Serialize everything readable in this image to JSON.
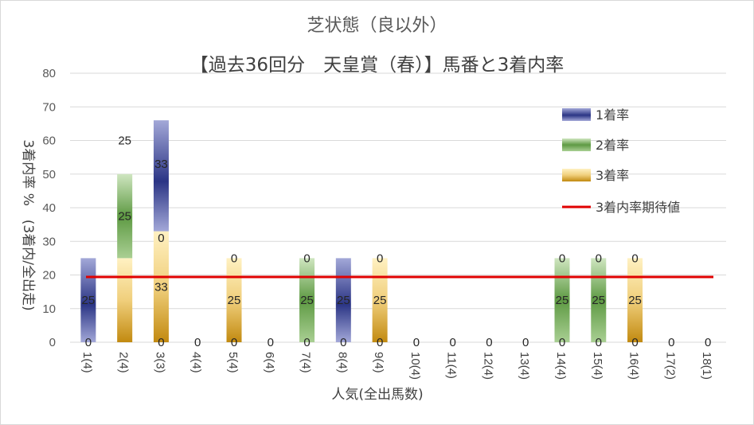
{
  "chart_data": {
    "type": "bar",
    "title": "芝状態（良以外）",
    "subtitle": "【過去36回分　天皇賞（春）】馬番と3着内率",
    "xlabel": "人気(全出馬数)",
    "ylabel": "3着内率 %　(3着内/全出走)",
    "ylim": [
      0,
      80
    ],
    "yticks": [
      0,
      10,
      20,
      30,
      40,
      50,
      60,
      70,
      80
    ],
    "categories": [
      "1(4)",
      "2(4)",
      "3(3)",
      "4(4)",
      "5(4)",
      "6(4)",
      "7(4)",
      "8(4)",
      "9(4)",
      "10(4)",
      "11(4)",
      "12(4)",
      "13(4)",
      "14(4)",
      "15(4)",
      "16(4)",
      "17(2)",
      "18(1)"
    ],
    "series": [
      {
        "name": "1着率",
        "values": [
          25,
          0,
          33,
          0,
          0,
          0,
          0,
          25,
          0,
          0,
          0,
          0,
          0,
          0,
          0,
          0,
          0,
          0
        ]
      },
      {
        "name": "2着率",
        "values": [
          0,
          25,
          0,
          0,
          0,
          0,
          25,
          0,
          0,
          0,
          0,
          0,
          0,
          25,
          25,
          0,
          0,
          0
        ]
      },
      {
        "name": "3着率",
        "values": [
          0,
          25,
          33,
          0,
          25,
          0,
          0,
          0,
          25,
          0,
          0,
          0,
          0,
          0,
          0,
          25,
          0,
          0
        ]
      }
    ],
    "data_labels": {
      "series1": [
        "0",
        "25",
        "33",
        "",
        "",
        "",
        "",
        "",
        "",
        "",
        "",
        "",
        "",
        "",
        "",
        "",
        "",
        ""
      ],
      "series2": [
        "25",
        "25",
        "",
        "",
        "",
        "",
        "25",
        "25",
        "",
        "",
        "",
        "",
        "",
        "25",
        "25",
        "",
        "",
        ""
      ],
      "series3": [
        "0",
        "",
        "0",
        "0",
        "0",
        "0",
        "0",
        "0",
        "0",
        "0",
        "0",
        "0",
        "0",
        "0",
        "0",
        "0",
        "0",
        "0"
      ],
      "series3_top": [
        "",
        "",
        "",
        "",
        "0",
        "",
        "0",
        "",
        "0",
        "",
        "",
        "",
        "",
        "0",
        "0",
        "0",
        "",
        ""
      ],
      "series2_mid": [
        "25",
        "",
        "33",
        "",
        "25",
        "",
        "",
        "",
        "25",
        "",
        "",
        "",
        "",
        "",
        "",
        "25",
        "",
        ""
      ]
    },
    "expected_line": {
      "name": "3着内率期待値",
      "value": 19.4
    },
    "colors": {
      "1着率": "#3f4a9a",
      "2着率": "#6aa84f",
      "3着率": "#e6b84a",
      "3着内率期待値": "#e00000"
    },
    "legend_position": "right",
    "grid": true
  }
}
